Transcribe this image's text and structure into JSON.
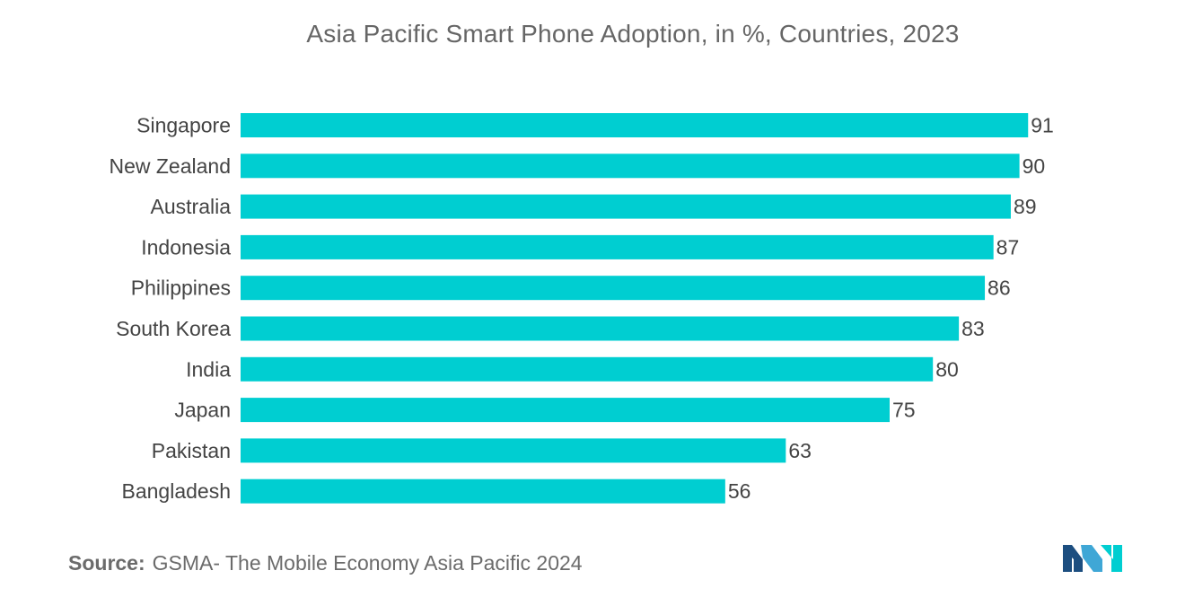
{
  "chart_data": {
    "type": "bar",
    "orientation": "horizontal",
    "title": "Asia Pacific Smart Phone Adoption, in %, Countries, 2023",
    "categories": [
      "Singapore",
      "New Zealand",
      "Australia",
      "Indonesia",
      "Philippines",
      "South Korea",
      "India",
      "Japan",
      "Pakistan",
      "Bangladesh"
    ],
    "values": [
      91,
      90,
      89,
      87,
      86,
      83,
      80,
      75,
      63,
      56
    ],
    "xlabel": "",
    "ylabel": "",
    "xlim": [
      0,
      100
    ],
    "grid": false,
    "legend": "none",
    "bar_color": "#00CED1"
  },
  "source": {
    "label": "Source:",
    "text": "GSMA- The Mobile Economy Asia Pacific 2024"
  },
  "logo": {
    "icon": "mordor-intelligence-logo-icon",
    "colors": [
      "#1C4E80",
      "#3FA7D6",
      "#00CED1"
    ]
  }
}
